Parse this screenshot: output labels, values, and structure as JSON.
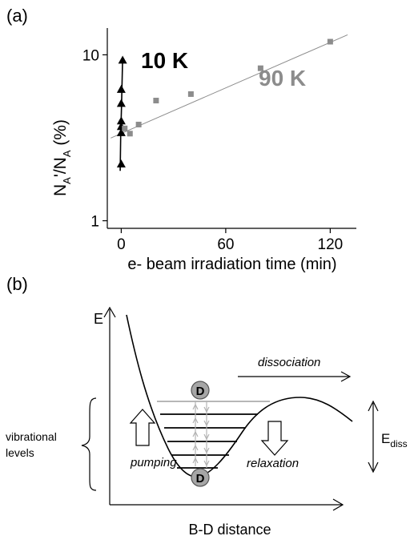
{
  "panel_a": {
    "label": "(a)",
    "chart_data": {
      "type": "scatter",
      "title": "",
      "xlabel": "e- beam irradiation time (min)",
      "ylabel": "N_A'/N_A (%)",
      "ylabel_parts": {
        "n1": "N",
        "s1": "A",
        "mid": "'/N",
        "s2": "A",
        "unit": " (%)"
      },
      "yscale": "log",
      "xlim": [
        -8,
        135
      ],
      "ylim": [
        0.9,
        14.5
      ],
      "xticks": [
        0,
        60,
        120
      ],
      "yticks": [
        1,
        10
      ],
      "xtick_labels": [
        "0",
        "60",
        "120"
      ],
      "ytick_labels": [
        "1",
        "10"
      ],
      "series": [
        {
          "name": "10 K",
          "color": "#000000",
          "marker": "triangle",
          "points": [
            {
              "x": 0,
              "y": 2.2
            },
            {
              "x": 0,
              "y": 3.4
            },
            {
              "x": 0,
              "y": 3.7
            },
            {
              "x": 0,
              "y": 4.0
            },
            {
              "x": 0,
              "y": 5.1
            },
            {
              "x": 0,
              "y": 6.2
            },
            {
              "x": 0.8,
              "y": 9.3
            }
          ],
          "fit": [
            {
              "x": -0.6,
              "y": 2.0
            },
            {
              "x": -0.3,
              "y": 3.2
            },
            {
              "x": 0.2,
              "y": 5.0
            },
            {
              "x": 0.8,
              "y": 9.4
            }
          ]
        },
        {
          "name": "90 K",
          "color": "#8c8c8c",
          "marker": "square",
          "points": [
            {
              "x": 2,
              "y": 3.6
            },
            {
              "x": 5,
              "y": 3.35
            },
            {
              "x": 10,
              "y": 3.8
            },
            {
              "x": 20,
              "y": 5.3
            },
            {
              "x": 40,
              "y": 5.8
            },
            {
              "x": 80,
              "y": 8.3
            },
            {
              "x": 120,
              "y": 12.0
            }
          ],
          "fit": [
            {
              "x": -6,
              "y": 3.15
            },
            {
              "x": 130,
              "y": 13.2
            }
          ]
        }
      ]
    }
  },
  "panel_b": {
    "label": "(b)",
    "y_axis_label": "E",
    "x_axis_label": "B-D distance",
    "dissociation_label": "dissociation",
    "vibrational_label_line1": "vibrational",
    "vibrational_label_line2": "levels",
    "pumping_label": "pumping",
    "relaxation_label": "relaxation",
    "ediss_main": "E",
    "ediss_sub": "diss",
    "atom_label_top": "D",
    "atom_label_bottom": "D",
    "colors": {
      "atom_fill": "#a6a6a6",
      "level_line": "#000000",
      "top_level_line": "#8c8c8c",
      "transition_arrows": "#b3b3b3"
    }
  }
}
